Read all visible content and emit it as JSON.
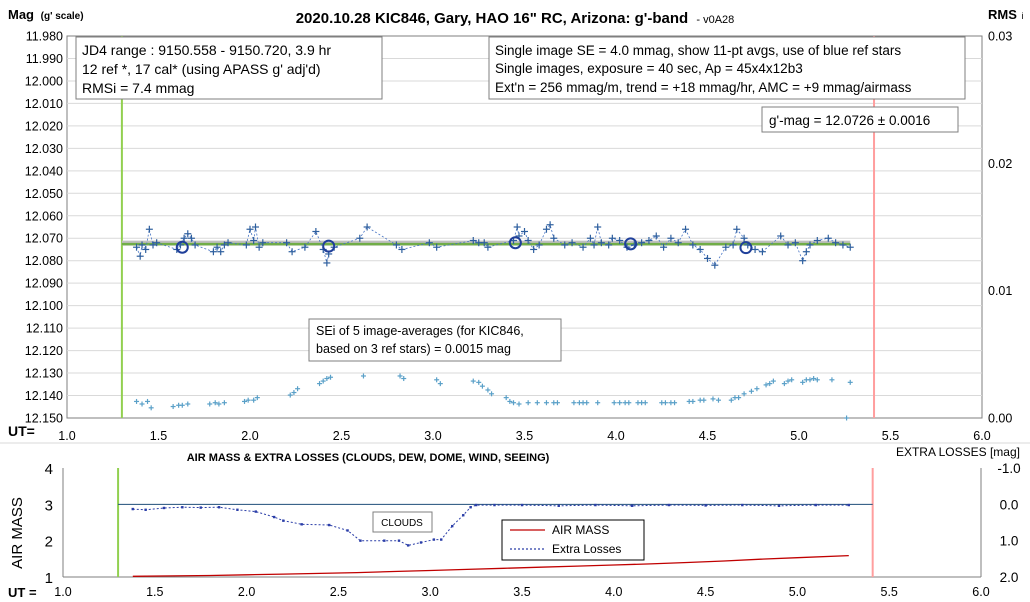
{
  "chart_data": [
    {
      "type": "scatter",
      "title": "2020.10.28 KIC846, Gary, HAO 16\" RC, Arizona: g'-band",
      "title_suffix": "- v0A28",
      "ylabel": "Mag",
      "ylabel_suffix": "(g' scale)",
      "y2label": "RMS",
      "y2label_suffix": "i",
      "xlabel": "UT=",
      "xlim": [
        1.0,
        6.0
      ],
      "ylim": [
        11.98,
        12.15
      ],
      "y_inverted": true,
      "y2lim": [
        0.0,
        0.03
      ],
      "x_ticks": [
        "1.0",
        "1.5",
        "2.0",
        "2.5",
        "3.0",
        "3.5",
        "4.0",
        "4.5",
        "5.0",
        "5.5",
        "6.0"
      ],
      "y_ticks": [
        "11.980",
        "11.990",
        "12.000",
        "12.010",
        "12.020",
        "12.030",
        "12.040",
        "12.050",
        "12.060",
        "12.070",
        "12.080",
        "12.090",
        "12.100",
        "12.110",
        "12.120",
        "12.130",
        "12.140",
        "12.150"
      ],
      "y2_ticks": [
        "0.03",
        "0.02",
        "0.01",
        "0.00"
      ],
      "grid": true,
      "vlines": [
        {
          "x": 1.3,
          "color": "#92d050"
        },
        {
          "x": 5.41,
          "color": "#ff9e9e"
        }
      ],
      "fit_line": {
        "x": [
          1.3,
          5.28
        ],
        "y": [
          12.0726,
          12.0726
        ],
        "color": "#70ad47"
      },
      "reference_line": {
        "x": [
          1.3,
          5.28
        ],
        "y": [
          12.0722,
          12.0722
        ],
        "color": "#bfbfbf"
      },
      "series": [
        {
          "x": [
            1.38,
            1.4,
            1.41,
            1.43,
            1.45,
            1.47,
            1.49,
            1.6,
            1.62,
            1.64,
            1.66,
            1.68,
            1.7,
            1.8,
            1.82,
            1.84,
            1.86,
            1.88,
            1.98,
            2.0,
            2.02,
            2.03,
            2.05,
            2.07,
            2.2,
            2.23,
            2.3,
            2.36,
            2.4,
            2.42,
            2.43,
            2.46,
            2.6,
            2.64,
            2.8,
            2.83,
            2.98,
            3.02,
            3.22,
            3.25,
            3.28,
            3.3,
            3.44,
            3.46,
            3.47,
            3.5,
            3.52,
            3.55,
            3.58,
            3.62,
            3.64,
            3.66,
            3.72,
            3.76,
            3.82,
            3.86,
            3.88,
            3.9,
            3.92,
            3.96,
            3.98,
            4.02,
            4.06,
            4.1,
            4.14,
            4.18,
            4.22,
            4.26,
            4.3,
            4.34,
            4.38,
            4.42,
            4.46,
            4.5,
            4.54,
            4.6,
            4.64,
            4.66,
            4.7,
            4.72,
            4.76,
            4.8,
            4.9,
            4.94,
            4.98,
            5.02,
            5.04,
            5.06,
            5.1,
            5.16,
            5.2,
            5.24,
            5.28
          ],
          "y": [
            12.074,
            12.078,
            12.073,
            12.075,
            12.066,
            12.073,
            12.072,
            12.075,
            12.073,
            12.07,
            12.068,
            12.07,
            12.073,
            12.076,
            12.074,
            12.076,
            12.073,
            12.072,
            12.073,
            12.066,
            12.071,
            12.065,
            12.074,
            12.072,
            12.072,
            12.076,
            12.074,
            12.067,
            12.075,
            12.081,
            12.077,
            12.074,
            12.07,
            12.065,
            12.073,
            12.075,
            12.072,
            12.074,
            12.071,
            12.072,
            12.072,
            12.074,
            12.071,
            12.065,
            12.069,
            12.067,
            12.071,
            12.075,
            12.073,
            12.066,
            12.064,
            12.07,
            12.073,
            12.072,
            12.074,
            12.07,
            12.073,
            12.065,
            12.072,
            12.073,
            12.07,
            12.071,
            12.074,
            12.073,
            12.072,
            12.071,
            12.069,
            12.074,
            12.07,
            12.072,
            12.066,
            12.073,
            12.075,
            12.079,
            12.082,
            12.074,
            12.073,
            12.066,
            12.07,
            12.073,
            12.075,
            12.076,
            12.069,
            12.073,
            12.072,
            12.08,
            12.076,
            12.073,
            12.071,
            12.07,
            12.072,
            12.073,
            12.074
          ]
        },
        {
          "x": [
            1.63,
            2.43,
            3.45,
            4.08,
            4.71
          ],
          "y": [
            12.074,
            12.0735,
            12.072,
            12.0725,
            12.0742
          ]
        },
        {
          "axis": "y2",
          "x": [
            1.38,
            1.41,
            1.44,
            1.46,
            1.58,
            1.61,
            1.63,
            1.66,
            1.78,
            1.81,
            1.83,
            1.86,
            1.97,
            1.99,
            2.02,
            2.04,
            2.22,
            2.24,
            2.26,
            2.38,
            2.4,
            2.42,
            2.44,
            2.62,
            2.82,
            2.84,
            3.02,
            3.04,
            3.22,
            3.25,
            3.27,
            3.3,
            3.32,
            3.4,
            3.42,
            3.44,
            3.47,
            3.52,
            3.57,
            3.62,
            3.66,
            3.68,
            3.77,
            3.8,
            3.82,
            3.84,
            3.9,
            3.99,
            4.02,
            4.05,
            4.07,
            4.12,
            4.14,
            4.16,
            4.25,
            4.27,
            4.3,
            4.32,
            4.4,
            4.42,
            4.46,
            4.48,
            4.53,
            4.56,
            4.63,
            4.65,
            4.67,
            4.7,
            4.74,
            4.77,
            4.82,
            4.84,
            4.86,
            4.92,
            4.94,
            4.96,
            5.02,
            5.04,
            5.06,
            5.08,
            5.1,
            5.18,
            5.26,
            5.28
          ],
          "y": [
            0.0013,
            0.0011,
            0.0013,
            0.0008,
            0.0009,
            0.001,
            0.001,
            0.0011,
            0.0011,
            0.0012,
            0.0011,
            0.0012,
            0.0013,
            0.0014,
            0.0014,
            0.0016,
            0.0018,
            0.002,
            0.0023,
            0.0027,
            0.0029,
            0.0031,
            0.0032,
            0.0033,
            0.0033,
            0.0031,
            0.003,
            0.0027,
            0.0029,
            0.0028,
            0.0025,
            0.0022,
            0.0019,
            0.0016,
            0.0013,
            0.0012,
            0.0011,
            0.0012,
            0.0012,
            0.0012,
            0.0012,
            0.0012,
            0.0012,
            0.0012,
            0.0012,
            0.0012,
            0.0012,
            0.0012,
            0.0012,
            0.0012,
            0.0012,
            0.0012,
            0.0012,
            0.0012,
            0.0012,
            0.0012,
            0.0012,
            0.0012,
            0.0013,
            0.0013,
            0.0014,
            0.0014,
            0.0015,
            0.0014,
            0.0014,
            0.0016,
            0.0016,
            0.0019,
            0.0021,
            0.0023,
            0.0026,
            0.0027,
            0.0029,
            0.0027,
            0.0029,
            0.003,
            0.0028,
            0.003,
            0.003,
            0.0031,
            0.003,
            0.003,
            0.0,
            0.0028
          ]
        }
      ],
      "annotations": [
        {
          "lines": [
            "JD4 range : 9150.558 - 9150.720,  3.9  hr",
            "12 ref *, 17 cal* (using APASS g' adj'd)",
            "RMSi = 7.4 mmag"
          ]
        },
        {
          "lines": [
            "Single image SE = 4.0 mmag, show  11-pt avgs, use of blue ref stars",
            "Single images, exposure = 40 sec, Ap = 45x4x12b3",
            "Ext'n = 256 mmag/m, trend =  +18 mmag/hr, AMC = +9 mmag/airmass"
          ]
        },
        {
          "lines": [
            "g'-mag = 12.0726 ± 0.0016"
          ]
        },
        {
          "lines": [
            "SEi of 5 image-averages (for KIC846,",
            "based on 3 ref stars) = 0.0015 mag"
          ]
        }
      ]
    },
    {
      "type": "line",
      "title": "AIR MASS & EXTRA LOSSES (CLOUDS, DEW, DOME, WIND, SEEING)",
      "ylabel": "AIR MASS",
      "y2label": "EXTRA LOSSES [mag]",
      "xlabel": "UT =",
      "xlim": [
        1.0,
        6.0
      ],
      "ylim": [
        1,
        4
      ],
      "y2lim": [
        2.0,
        -1.0
      ],
      "x_ticks": [
        "1.0",
        "1.5",
        "2.0",
        "2.5",
        "3.0",
        "3.5",
        "4.0",
        "4.5",
        "5.0",
        "5.5",
        "6.0"
      ],
      "y_ticks": [
        "4",
        "3",
        "2",
        "1"
      ],
      "y2_ticks": [
        "-1.0",
        "0.0",
        "1.0",
        "2.0"
      ],
      "grid": false,
      "vlines": [
        {
          "x": 1.3,
          "color": "#92d050"
        },
        {
          "x": 5.41,
          "color": "#ff9e9e"
        }
      ],
      "hline": {
        "y": 3.0,
        "color": "#1f4e79"
      },
      "series": [
        {
          "name": "AIR MASS",
          "color": "#c00000",
          "x": [
            1.38,
            1.6,
            1.8,
            2.0,
            2.2,
            2.4,
            2.6,
            2.8,
            3.0,
            3.2,
            3.4,
            3.6,
            3.8,
            4.0,
            4.2,
            4.4,
            4.6,
            4.8,
            5.0,
            5.28
          ],
          "y": [
            1.02,
            1.03,
            1.04,
            1.06,
            1.08,
            1.1,
            1.12,
            1.15,
            1.18,
            1.21,
            1.24,
            1.27,
            1.3,
            1.33,
            1.36,
            1.4,
            1.44,
            1.49,
            1.53,
            1.59
          ]
        },
        {
          "name": "Extra Losses",
          "color": "#2b3ea8",
          "axis": "y2",
          "x": [
            1.38,
            1.45,
            1.55,
            1.65,
            1.75,
            1.85,
            1.95,
            2.05,
            2.15,
            2.2,
            2.3,
            2.45,
            2.55,
            2.62,
            2.75,
            2.83,
            2.88,
            2.95,
            3.02,
            3.06,
            3.12,
            3.18,
            3.22,
            3.25,
            3.35,
            3.5,
            3.7,
            3.9,
            4.1,
            4.3,
            4.5,
            4.7,
            4.9,
            5.1,
            5.28
          ],
          "y": [
            0.13,
            0.15,
            0.1,
            0.08,
            0.09,
            0.08,
            0.15,
            0.2,
            0.35,
            0.45,
            0.55,
            0.57,
            0.72,
            1.0,
            1.0,
            1.0,
            1.13,
            1.05,
            0.97,
            0.97,
            0.6,
            0.3,
            0.08,
            0.02,
            0.02,
            0.02,
            0.04,
            0.02,
            0.04,
            0.02,
            0.03,
            0.02,
            0.04,
            0.02,
            0.02
          ]
        }
      ],
      "annotations": [
        {
          "lines": [
            "CLOUDS"
          ]
        }
      ]
    }
  ]
}
